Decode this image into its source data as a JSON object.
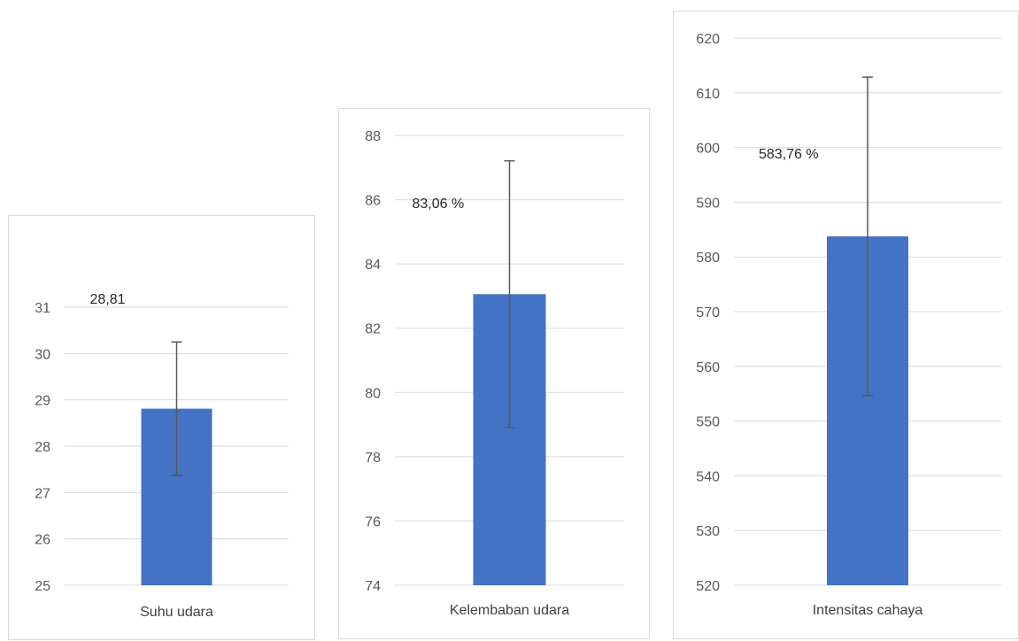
{
  "colors": {
    "bar": "#4472c4",
    "grid": "#d9d9d9",
    "errorbar": "#595959",
    "border": "#d9d9d9"
  },
  "chart_data": [
    {
      "type": "bar",
      "categories": [
        "Suhu udara"
      ],
      "values": [
        28.81
      ],
      "error": [
        1.44
      ],
      "data_label": "28,81",
      "ylim": [
        25,
        31
      ],
      "yticks": [
        "25",
        "26",
        "27",
        "28",
        "29",
        "30",
        "31"
      ],
      "grid": true
    },
    {
      "type": "bar",
      "categories": [
        "Kelembaban udara"
      ],
      "values": [
        83.06
      ],
      "error": [
        4.15
      ],
      "data_label": "83,06 %",
      "ylim": [
        74,
        88
      ],
      "yticks": [
        "74",
        "76",
        "78",
        "80",
        "82",
        "84",
        "86",
        "88"
      ],
      "grid": true
    },
    {
      "type": "bar",
      "categories": [
        "Intensitas cahaya"
      ],
      "values": [
        583.76
      ],
      "error": [
        29.1
      ],
      "data_label": "583,76 %",
      "ylim": [
        520,
        620
      ],
      "yticks": [
        "520",
        "530",
        "540",
        "550",
        "560",
        "570",
        "580",
        "590",
        "600",
        "610",
        "620"
      ],
      "grid": true
    }
  ]
}
